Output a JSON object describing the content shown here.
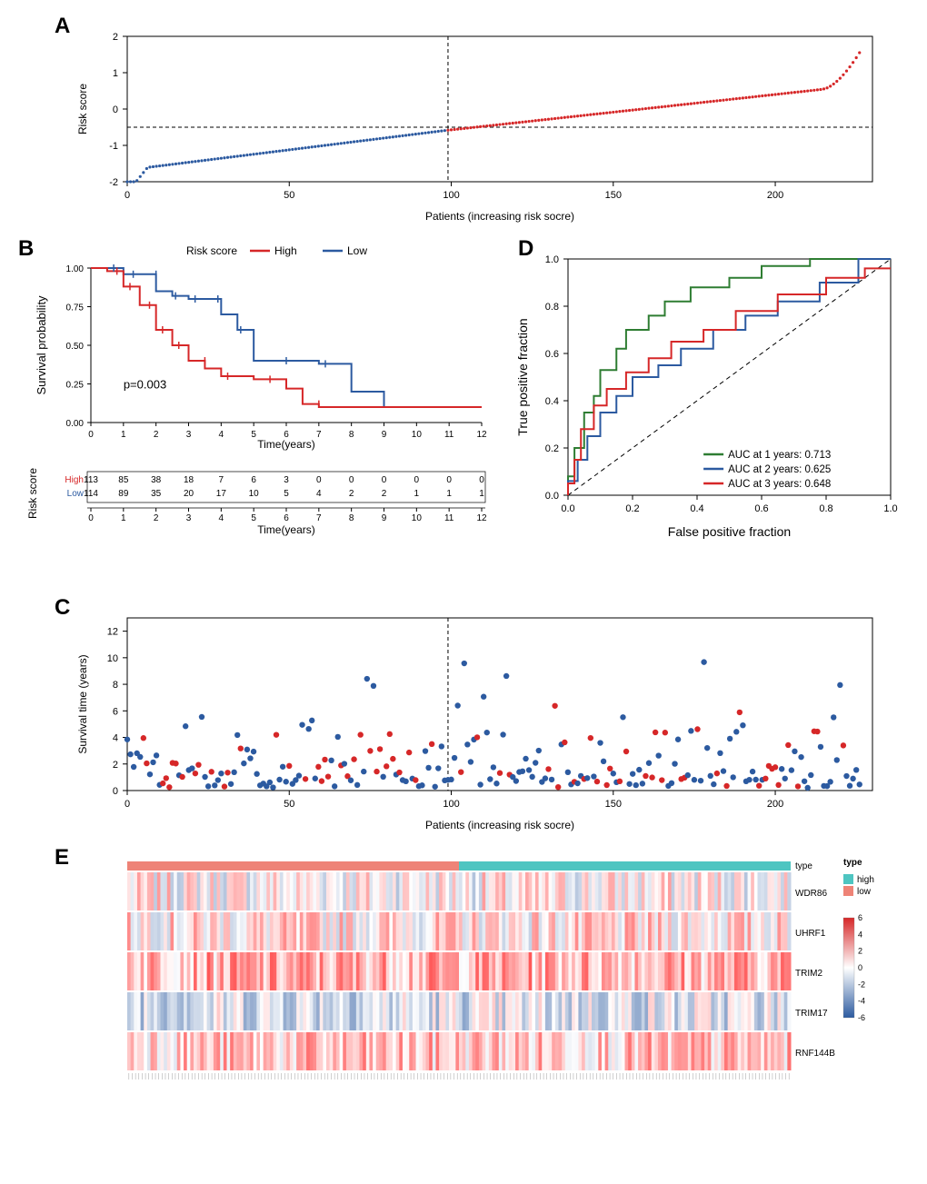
{
  "panelA": {
    "label": "A",
    "type": "scatter",
    "xlabel": "Patients (increasing risk socre)",
    "ylabel": "Risk score",
    "xlim": [
      0,
      230
    ],
    "ylim": [
      -2,
      2
    ],
    "xticks": [
      0,
      50,
      100,
      150,
      200
    ],
    "yticks": [
      -2,
      -1,
      0,
      1,
      2
    ],
    "cutoff_x": 99,
    "cutoff_y": -0.5,
    "colors": {
      "low": "#2c5aa0",
      "high": "#d62728"
    },
    "label_fontsize": 12,
    "tick_fontsize": 10
  },
  "panelB": {
    "label": "B",
    "type": "km-survival",
    "title": "Risk score",
    "legend_items": [
      {
        "label": "High",
        "color": "#d62728"
      },
      {
        "label": "Low",
        "color": "#2c5aa0"
      }
    ],
    "xlabel": "Time(years)",
    "ylabel": "Survival probability",
    "xlim": [
      0,
      12
    ],
    "ylim": [
      0,
      1
    ],
    "xticks": [
      0,
      1,
      2,
      3,
      4,
      5,
      6,
      7,
      8,
      9,
      10,
      11,
      12
    ],
    "yticks": [
      0.0,
      0.25,
      0.5,
      0.75,
      1.0
    ],
    "pvalue": "p=0.003",
    "high_curve": [
      [
        0,
        1.0
      ],
      [
        0.5,
        0.98
      ],
      [
        1,
        0.88
      ],
      [
        1.5,
        0.76
      ],
      [
        2,
        0.6
      ],
      [
        2.5,
        0.5
      ],
      [
        3,
        0.4
      ],
      [
        3.5,
        0.35
      ],
      [
        4,
        0.3
      ],
      [
        5,
        0.28
      ],
      [
        6,
        0.22
      ],
      [
        6.5,
        0.12
      ],
      [
        7,
        0.1
      ],
      [
        12,
        0.1
      ]
    ],
    "low_curve": [
      [
        0,
        1.0
      ],
      [
        1,
        0.96
      ],
      [
        2,
        0.85
      ],
      [
        2.5,
        0.82
      ],
      [
        3,
        0.8
      ],
      [
        4,
        0.7
      ],
      [
        4.5,
        0.6
      ],
      [
        5,
        0.4
      ],
      [
        6,
        0.4
      ],
      [
        7,
        0.38
      ],
      [
        8,
        0.2
      ],
      [
        9,
        0.1
      ],
      [
        12,
        0.1
      ]
    ],
    "risk_table": {
      "title": "Risk score",
      "xlabel": "Time(years)",
      "rows": [
        {
          "label": "High",
          "color": "#d62728",
          "counts": [
            113,
            85,
            38,
            18,
            7,
            6,
            3,
            0,
            0,
            0,
            0,
            0,
            0
          ]
        },
        {
          "label": "Low",
          "color": "#2c5aa0",
          "counts": [
            114,
            89,
            35,
            20,
            17,
            10,
            5,
            4,
            2,
            2,
            1,
            1,
            1
          ]
        }
      ],
      "times": [
        0,
        1,
        2,
        3,
        4,
        5,
        6,
        7,
        8,
        9,
        10,
        11,
        12
      ]
    }
  },
  "panelC": {
    "label": "C",
    "type": "scatter",
    "xlabel": "Patients (increasing risk socre)",
    "ylabel": "Survival time (years)",
    "xlim": [
      0,
      230
    ],
    "ylim": [
      0,
      13
    ],
    "xticks": [
      0,
      50,
      100,
      150,
      200
    ],
    "yticks": [
      0,
      2,
      4,
      6,
      8,
      10,
      12
    ],
    "cutoff_x": 99,
    "colors": {
      "red": "#d62728",
      "blue": "#2c5aa0"
    }
  },
  "panelD": {
    "label": "D",
    "type": "roc",
    "xlabel": "False positive fraction",
    "ylabel": "True positive fraction",
    "xlim": [
      0,
      1
    ],
    "ylim": [
      0,
      1
    ],
    "xticks": [
      0.0,
      0.2,
      0.4,
      0.6,
      0.8,
      1.0
    ],
    "yticks": [
      0.0,
      0.2,
      0.4,
      0.6,
      0.8,
      1.0
    ],
    "curves": [
      {
        "label": "AUC at 1 years: 0.713",
        "color": "#2e7d32",
        "pts": [
          [
            0,
            0
          ],
          [
            0.02,
            0.08
          ],
          [
            0.05,
            0.2
          ],
          [
            0.08,
            0.35
          ],
          [
            0.1,
            0.42
          ],
          [
            0.15,
            0.53
          ],
          [
            0.18,
            0.62
          ],
          [
            0.25,
            0.7
          ],
          [
            0.3,
            0.76
          ],
          [
            0.38,
            0.82
          ],
          [
            0.5,
            0.88
          ],
          [
            0.6,
            0.92
          ],
          [
            0.75,
            0.97
          ],
          [
            0.85,
            1.0
          ],
          [
            1,
            1
          ]
        ]
      },
      {
        "label": "AUC at 2 years: 0.625",
        "color": "#2c5aa0",
        "pts": [
          [
            0,
            0
          ],
          [
            0.03,
            0.06
          ],
          [
            0.06,
            0.15
          ],
          [
            0.1,
            0.25
          ],
          [
            0.15,
            0.35
          ],
          [
            0.2,
            0.42
          ],
          [
            0.28,
            0.5
          ],
          [
            0.35,
            0.55
          ],
          [
            0.45,
            0.62
          ],
          [
            0.55,
            0.7
          ],
          [
            0.65,
            0.76
          ],
          [
            0.78,
            0.82
          ],
          [
            0.9,
            0.9
          ],
          [
            1,
            1
          ]
        ]
      },
      {
        "label": "AUC at 3 years: 0.648",
        "color": "#d62728",
        "pts": [
          [
            0,
            0
          ],
          [
            0.02,
            0.05
          ],
          [
            0.04,
            0.15
          ],
          [
            0.08,
            0.28
          ],
          [
            0.12,
            0.38
          ],
          [
            0.18,
            0.45
          ],
          [
            0.25,
            0.52
          ],
          [
            0.32,
            0.58
          ],
          [
            0.42,
            0.65
          ],
          [
            0.52,
            0.7
          ],
          [
            0.65,
            0.78
          ],
          [
            0.8,
            0.85
          ],
          [
            0.92,
            0.92
          ],
          [
            1,
            0.96
          ]
        ]
      }
    ]
  },
  "panelE": {
    "label": "E",
    "type": "heatmap",
    "genes": [
      "WDR86",
      "UHRF1",
      "TRIM2",
      "TRIM17",
      "RNF144B"
    ],
    "type_bar": {
      "low_color": "#ee8377",
      "high_color": "#4ec5c1",
      "split": 0.5,
      "label": "type"
    },
    "legend": {
      "title": "type",
      "items": [
        {
          "label": "high",
          "color": "#4ec5c1"
        },
        {
          "label": "low",
          "color": "#ee8377"
        }
      ],
      "scale_title": "",
      "scale_values": [
        6,
        4,
        2,
        0,
        -2,
        -4,
        -6
      ],
      "scale_colors_top": "#d62728",
      "scale_colors_mid": "#ffffff",
      "scale_colors_bot": "#2c5aa0"
    }
  }
}
